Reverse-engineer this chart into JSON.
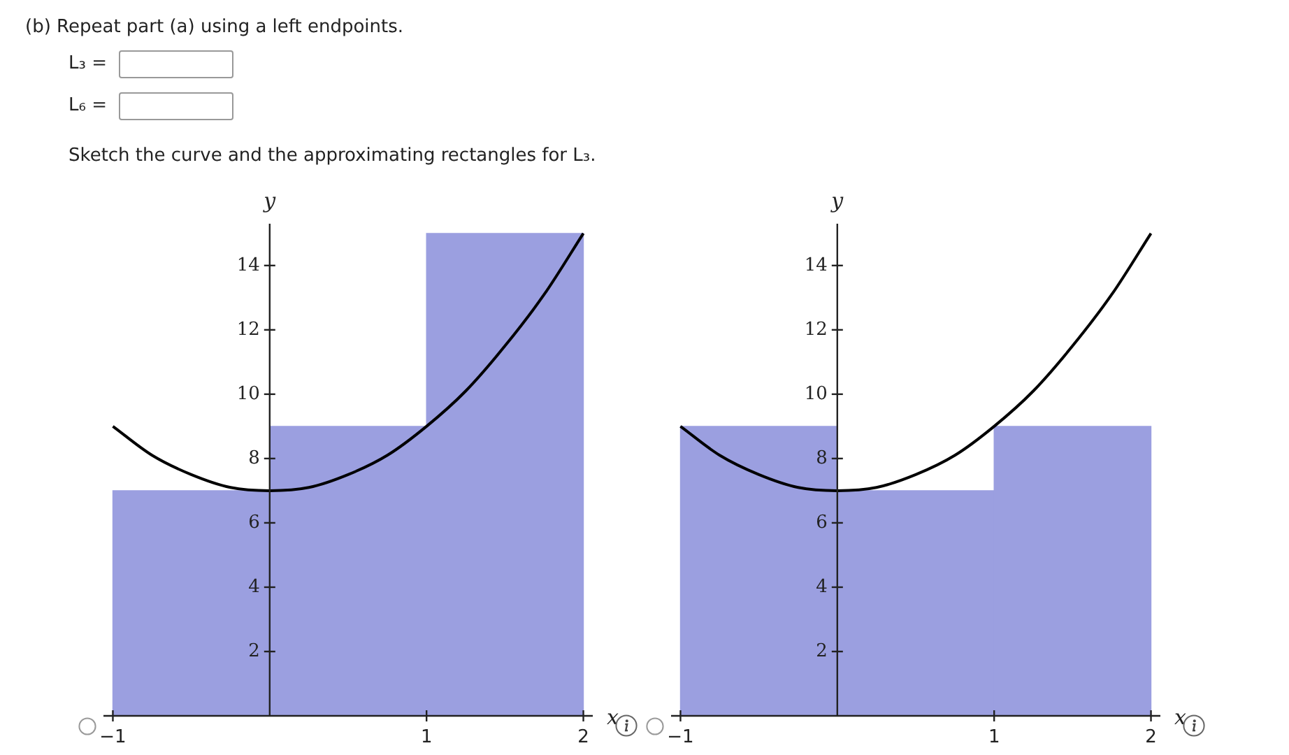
{
  "chart_data": [
    {
      "type": "histogram",
      "annotations": [
        "(b) Repeat part (a) using a left endpoints.",
        "L₃ =",
        "L₆ =",
        "Sketch the curve and the approximating rectangles for L₃."
      ],
      "xlabel": "x",
      "ylabel": "y",
      "bins": [
        -1,
        0,
        1,
        2
      ],
      "values": [
        7,
        9,
        15
      ],
      "color": "#9b9fe0",
      "series": [
        {
          "type": "line",
          "color": "#000000",
          "x": [
            -1,
            -0.75,
            -0.5,
            -0.25,
            0,
            0.25,
            0.5,
            0.75,
            1,
            1.25,
            1.5,
            1.75,
            2
          ],
          "values": [
            9,
            8.1,
            7.5,
            7.1,
            7,
            7.1,
            7.5,
            8.1,
            9,
            10.1,
            11.5,
            13.1,
            15
          ]
        }
      ],
      "xlim": [
        -1.06,
        2.06
      ],
      "ylim": [
        0,
        15.3
      ],
      "xticks": [
        -1,
        1,
        2
      ],
      "yticks": [
        2,
        4,
        6,
        8,
        10,
        12,
        14
      ],
      "legend": false,
      "marker": "none",
      "line_style": "solid"
    },
    {
      "type": "histogram",
      "xlabel": "x",
      "ylabel": "y",
      "bins": [
        -1,
        0,
        1,
        2
      ],
      "values": [
        9,
        7,
        9
      ],
      "color": "#9b9fe0",
      "series": [
        {
          "type": "line",
          "color": "#000000",
          "x": [
            -1,
            -0.75,
            -0.5,
            -0.25,
            0,
            0.25,
            0.5,
            0.75,
            1,
            1.25,
            1.5,
            1.75,
            2
          ],
          "values": [
            9,
            8.1,
            7.5,
            7.1,
            7,
            7.1,
            7.5,
            8.1,
            9,
            10.1,
            11.5,
            13.1,
            15
          ]
        }
      ],
      "xlim": [
        -1.06,
        2.06
      ],
      "ylim": [
        0,
        15.3
      ],
      "xticks": [
        -1,
        1,
        2
      ],
      "yticks": [
        2,
        4,
        6,
        8,
        10,
        12,
        14
      ],
      "legend": false,
      "marker": "none",
      "line_style": "solid"
    }
  ]
}
